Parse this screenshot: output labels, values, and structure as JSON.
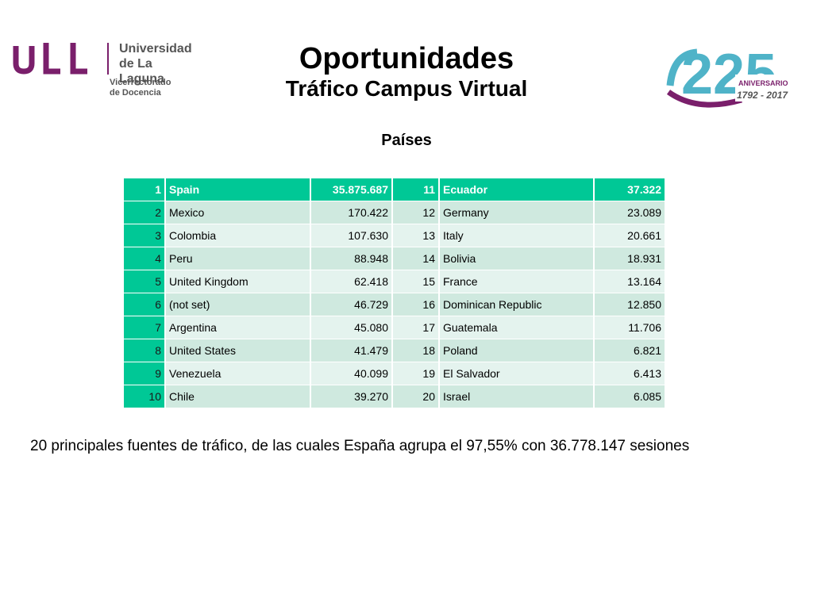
{
  "header": {
    "institution": [
      "Universidad",
      "de La Laguna"
    ],
    "department": [
      "Vicerrectorado",
      "de Docencia"
    ],
    "title": "Oportunidades",
    "subtitle": "Tráfico Campus Virtual",
    "anniversary": {
      "number": "225",
      "label": "ANIVERSARIO",
      "years": "1792 - 2017"
    }
  },
  "section_label": "Países",
  "table": {
    "rows": [
      {
        "rank_a": "1",
        "country_a": "Spain",
        "value_a": "35.875.687",
        "rank_b": "11",
        "country_b": "Ecuador",
        "value_b": "37.322"
      },
      {
        "rank_a": "2",
        "country_a": "Mexico",
        "value_a": "170.422",
        "rank_b": "12",
        "country_b": "Germany",
        "value_b": "23.089"
      },
      {
        "rank_a": "3",
        "country_a": "Colombia",
        "value_a": "107.630",
        "rank_b": "13",
        "country_b": "Italy",
        "value_b": "20.661"
      },
      {
        "rank_a": "4",
        "country_a": "Peru",
        "value_a": "88.948",
        "rank_b": "14",
        "country_b": "Bolivia",
        "value_b": "18.931"
      },
      {
        "rank_a": "5",
        "country_a": "United Kingdom",
        "value_a": "62.418",
        "rank_b": "15",
        "country_b": "France",
        "value_b": "13.164"
      },
      {
        "rank_a": "6",
        "country_a": "(not set)",
        "value_a": "46.729",
        "rank_b": "16",
        "country_b": "Dominican Republic",
        "value_b": "12.850"
      },
      {
        "rank_a": "7",
        "country_a": "Argentina",
        "value_a": "45.080",
        "rank_b": "17",
        "country_b": "Guatemala",
        "value_b": "11.706"
      },
      {
        "rank_a": "8",
        "country_a": "United States",
        "value_a": "41.479",
        "rank_b": "18",
        "country_b": "Poland",
        "value_b": "6.821"
      },
      {
        "rank_a": "9",
        "country_a": "Venezuela",
        "value_a": "40.099",
        "rank_b": "19",
        "country_b": "El Salvador",
        "value_b": "6.413"
      },
      {
        "rank_a": "10",
        "country_a": "Chile",
        "value_a": "39.270",
        "rank_b": "20",
        "country_b": "Israel",
        "value_b": "6.085"
      }
    ]
  },
  "footer_note": "20 principales fuentes de tráfico, de las cuales España agrupa el 97,55% con 36.778.147 sesiones",
  "colors": {
    "accent": "#00c896",
    "row_light": "#cfe9df",
    "row_lighter": "#e4f3ee",
    "brand_purple": "#7a1f6b",
    "brand_teal": "#4fb3c8"
  }
}
